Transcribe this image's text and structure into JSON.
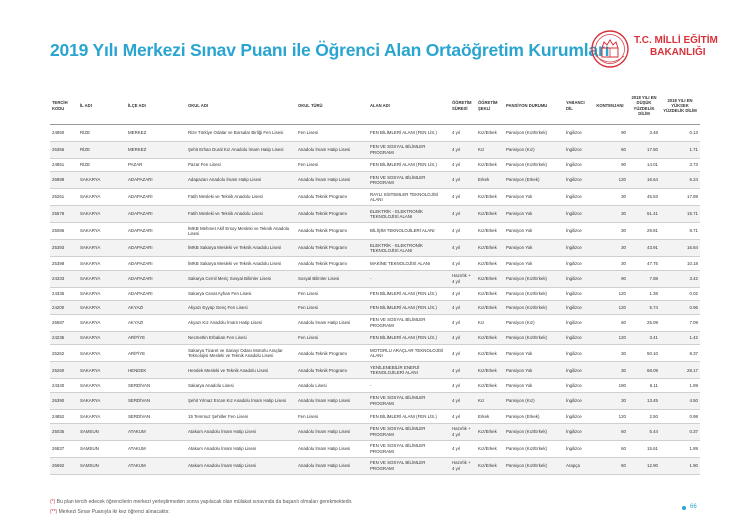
{
  "header": {
    "title": "2019 Yılı Merkezi Sınav Puanı ile Öğrenci Alan Ortaöğretim Kurumları",
    "logo_line1": "T.C. MİLLİ EĞİTİM",
    "logo_line2": "BAKANLIĞI"
  },
  "table": {
    "columns": [
      "TERCİH KODU",
      "İL ADI",
      "İLÇE ADI",
      "OKUL ADI",
      "OKUL TÜRÜ",
      "ALAN ADI",
      "ÖĞRETİM SÜRESİ",
      "ÖĞRETİM ŞEKLİ",
      "PANSİYON DURUMU",
      "YABANCI DİL",
      "KONTENJANI",
      "2018 YILI EN DÜŞÜK YÜZDELİK DİLİM",
      "2018 YILI EN YÜKSEK YÜZDELİK DİLİM"
    ],
    "rows": [
      [
        "24850",
        "RİZE",
        "MERKEZ",
        "Rize Türkiye Odalar ve Borsalar Birliği Fen Lisesi",
        "Fen Lisesi",
        "FEN BİLİMLERİ ALANI (FEN LİS.)",
        "4 yıl",
        "Kız/Erkek",
        "Pansiyon (Kız/Erkek)",
        "İngilizce",
        "90",
        "3.48",
        "0.13"
      ],
      [
        "26356",
        "RİZE",
        "MERKEZ",
        "Şehit Erhan Dural Kız Anadolu İmam Hatip Lisesi",
        "Anadolu İmam Hatip Lisesi",
        "FEN VE SOSYAL BİLİMLER PROGRAMI",
        "4 yıl",
        "Kız",
        "Pansiyon (Kız)",
        "İngilizce",
        "60",
        "17.50",
        "1.71"
      ],
      [
        "24851",
        "RİZE",
        "PAZAR",
        "Pazar Fen Lisesi",
        "Fen Lisesi",
        "FEN BİLİMLERİ ALANI (FEN LİS.)",
        "4 yıl",
        "Kız/Erkek",
        "Pansiyon (Kız/Erkek)",
        "İngilizce",
        "90",
        "14.01",
        "3.73"
      ],
      [
        "26888",
        "SAKARYA",
        "ADAPAZARI",
        "Adapazarı Anadolu İmam Hatip Lisesi",
        "Anadolu İmam Hatip Lisesi",
        "FEN VE SOSYAL BİLİMLER PROGRAMI",
        "4 yıl",
        "Erkek",
        "Pansiyon (Erkek)",
        "İngilizce",
        "120",
        "16.64",
        "6.24"
      ],
      [
        "25261",
        "SAKARYA",
        "ADAPAZARI",
        "Fatih Mesleki ve Teknik Anadolu Lisesi",
        "Anadolu Teknik Programı",
        "RAYLI SİSTEMLER TEKNOLOJİSİ ALANI",
        "4 yıl",
        "Kız/Erkek",
        "Pansiyon Yok",
        "İngilizce",
        "30",
        "45.53",
        "17.89"
      ],
      [
        "25578",
        "SAKARYA",
        "ADAPAZARI",
        "Fatih Mesleki ve Teknik Anadolu Lisesi",
        "Anadolu Teknik Programı",
        "ELEKTRİK - ELEKTRONİK TEKNOLOJİSİ ALANI",
        "4 yıl",
        "Kız/Erkek",
        "Pansiyon Yok",
        "İngilizce",
        "30",
        "51.41",
        "15.71"
      ],
      [
        "25086",
        "SAKARYA",
        "ADAPAZARI",
        "İMKB Mehmet Akif Ersoy Mesleki ve Teknik Anadolu Lisesi",
        "Anadolu Teknik Programı",
        "BİLİŞİM TEKNOLOJİLERİ ALANI",
        "4 yıl",
        "Kız/Erkek",
        "Pansiyon Yok",
        "İngilizce",
        "30",
        "29.81",
        "8.71"
      ],
      [
        "25393",
        "SAKARYA",
        "ADAPAZARI",
        "İMKB Sakarya Mesleki ve Teknik Anadolu Lisesi",
        "Anadolu Teknik Programı",
        "ELEKTRİK - ELEKTRONİK TEKNOLOJİSİ ALANI",
        "4 yıl",
        "Kız/Erkek",
        "Pansiyon Yok",
        "İngilizce",
        "30",
        "43.91",
        "16.84"
      ],
      [
        "25398",
        "SAKARYA",
        "ADAPAZARI",
        "İMKB Sakarya Mesleki ve Teknik Anadolu Lisesi",
        "Anadolu Teknik Programı",
        "MAKİNE TEKNOLOJİSİ ALANI",
        "4 yıl",
        "Kız/Erkek",
        "Pansiyon Yok",
        "İngilizce",
        "30",
        "47.75",
        "10.18"
      ],
      [
        "24333",
        "SAKARYA",
        "ADAPAZARI",
        "Sakarya Cemil Meriç Sosyal Bilimler Lisesi",
        "Sosyal Bilimler Lisesi",
        "-",
        "Hazırlık + 4 yıl",
        "Kız/Erkek",
        "Pansiyon (Kız/Erkek)",
        "İngilizce",
        "90",
        "7.88",
        "3.42"
      ],
      [
        "24335",
        "SAKARYA",
        "ADAPAZARI",
        "Sakarya Cevat Ayhan Fen Lisesi",
        "Fen Lisesi",
        "FEN BİLİMLERİ ALANI (FEN LİS.)",
        "4 yıl",
        "Kız/Erkek",
        "Pansiyon (Kız/Erkek)",
        "İngilizce",
        "120",
        "1.38",
        "0.02"
      ],
      [
        "24200",
        "SAKARYA",
        "AKYAZI",
        "Akyazı Eyyüp Genç Fen Lisesi",
        "Fen Lisesi",
        "FEN BİLİMLERİ ALANI (FEN LİS.)",
        "4 yıl",
        "Kız/Erkek",
        "Pansiyon (Kız/Erkek)",
        "İngilizce",
        "120",
        "5.74",
        "0.96"
      ],
      [
        "26587",
        "SAKARYA",
        "AKYAZI",
        "Akyazı Kız Anadolu İmam Hatip Lisesi",
        "Anadolu İmam Hatip Lisesi",
        "FEN VE SOSYAL BİLİMLER PROGRAMI",
        "4 yıl",
        "Kız",
        "Pansiyon (Kız)",
        "İngilizce",
        "60",
        "25.09",
        "7.09"
      ],
      [
        "24235",
        "SAKARYA",
        "ARİFİYE",
        "Necmettin Erbakan Fen Lisesi",
        "Fen Lisesi",
        "FEN BİLİMLERİ ALANI (FEN LİS.)",
        "4 yıl",
        "Kız/Erkek",
        "Pansiyon (Kız/Erkek)",
        "İngilizce",
        "120",
        "3.41",
        "1.42"
      ],
      [
        "25262",
        "SAKARYA",
        "ARİFİYE",
        "Sakarya Ticaret ve Sanayi Odası Motorlu Araçlar Teknolojisi Mesleki ve Teknik Anadolu Lisesi",
        "Anadolu Teknik Programı",
        "MOTORLU ARAÇLAR TEKNOLOJİSİ ALANI",
        "4 yıl",
        "Kız/Erkek",
        "Pansiyon Yok",
        "İngilizce",
        "30",
        "50.10",
        "8.37"
      ],
      [
        "25260",
        "SAKARYA",
        "HENDEK",
        "Hendek Mesleki ve Teknik Anadolu Lisesi",
        "Anadolu Teknik Programı",
        "YENİLENEBİLİR ENERJİ TEKNOLOJİLERİ ALANI",
        "4 yıl",
        "Kız/Erkek",
        "Pansiyon Yok",
        "İngilizce",
        "30",
        "68.09",
        "28.17"
      ],
      [
        "24340",
        "SAKARYA",
        "SERDİVAN",
        "Sakarya Anadolu Lisesi",
        "Anadolu Lisesi",
        "-",
        "4 yıl",
        "Kız/Erkek",
        "Pansiyon Yok",
        "İngilizce",
        "180",
        "6.11",
        "1.89"
      ],
      [
        "26390",
        "SAKARYA",
        "SERDİVAN",
        "Şehit Yılmaz Ercan Kız Anadolu İmam Hatip Lisesi",
        "Anadolu İmam Hatip Lisesi",
        "FEN VE SOSYAL BİLİMLER PROGRAMI",
        "4 yıl",
        "Kız",
        "Pansiyon (Kız)",
        "İngilizce",
        "30",
        "13.45",
        "4.50"
      ],
      [
        "24852",
        "SAKARYA",
        "SERDİVAN",
        "15 Temmuz Şehitler Fen Lisesi",
        "Fen Lisesi",
        "FEN BİLİMLERİ ALANI (FEN LİS.)",
        "4 yıl",
        "Erkek",
        "Pansiyon (Erkek)",
        "İngilizce",
        "120",
        "2.50",
        "0.98"
      ],
      [
        "25035",
        "SAMSUN",
        "ATAKUM",
        "Atakum Anadolu İmam Hatip Lisesi",
        "Anadolu İmam Hatip Lisesi",
        "FEN VE SOSYAL BİLİMLER PROGRAMI",
        "Hazırlık + 4 yıl",
        "Kız/Erkek",
        "Pansiyon (Kız/Erkek)",
        "İngilizce",
        "60",
        "5.44",
        "0.37"
      ],
      [
        "26837",
        "SAMSUN",
        "ATAKUM",
        "Atakum Anadolu İmam Hatip Lisesi",
        "Anadolu İmam Hatip Lisesi",
        "FEN VE SOSYAL BİLİMLER PROGRAMI",
        "4 yıl",
        "Kız/Erkek",
        "Pansiyon (Kız/Erkek)",
        "İngilizce",
        "60",
        "15.61",
        "1.89"
      ],
      [
        "26692",
        "SAMSUN",
        "ATAKUM",
        "Atakum Anadolu İmam Hatip Lisesi",
        "Anadolu İmam Hatip Lisesi",
        "FEN VE SOSYAL BİLİMLER PROGRAMI",
        "Hazırlık + 4 yıl",
        "Kız/Erkek",
        "Pansiyon (Kız/Erkek)",
        "Arapça",
        "60",
        "12.90",
        "1.90"
      ]
    ]
  },
  "footnotes": {
    "note1_mark": "(*)",
    "note1_text": "Bu plan tercih edecek öğrencilerin merkezi yerleştirmeden sonra yapılacak olan mülakat sınavında da başarılı olmaları gerekmektedir.",
    "note2_mark": "(**)",
    "note2_text": "Merkezi Sınav Puanıyla iki kez öğrenci alınacaktır."
  },
  "page": {
    "number": "66"
  },
  "colors": {
    "title": "#2aa5d0",
    "logo": "#d7323a"
  }
}
